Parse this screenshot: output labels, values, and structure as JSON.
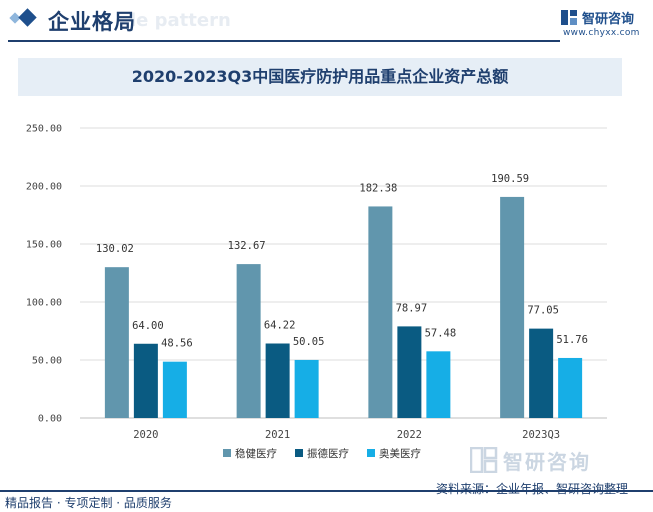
{
  "header": {
    "title": "企业格局",
    "watermark": "le pattern",
    "logo_name": "智研咨询",
    "logo_url": "www.chyxx.com"
  },
  "chart_data": {
    "type": "bar",
    "title": "2020-2023Q3中国医疗防护用品重点企业资产总额",
    "categories": [
      "2020",
      "2021",
      "2022",
      "2023Q3"
    ],
    "series": [
      {
        "name": "稳健医疗",
        "values": [
          130.02,
          132.67,
          182.38,
          190.59
        ],
        "color": "#6196ad"
      },
      {
        "name": "振德医疗",
        "values": [
          64.0,
          64.22,
          78.97,
          77.05
        ],
        "color": "#0a5b82"
      },
      {
        "name": "奥美医疗",
        "values": [
          48.56,
          50.05,
          57.48,
          51.76
        ],
        "color": "#16aee6"
      }
    ],
    "yticks": [
      "0.00",
      "50.00",
      "100.00",
      "150.00",
      "200.00",
      "250.00"
    ],
    "ylim": [
      0,
      250
    ],
    "legend_position": "bottom-center"
  },
  "footer": {
    "left": "精品报告 · 专项定制 · 品质服务",
    "right": "资料来源：企业年报、智研咨询整理",
    "watermark": "智研咨询"
  }
}
